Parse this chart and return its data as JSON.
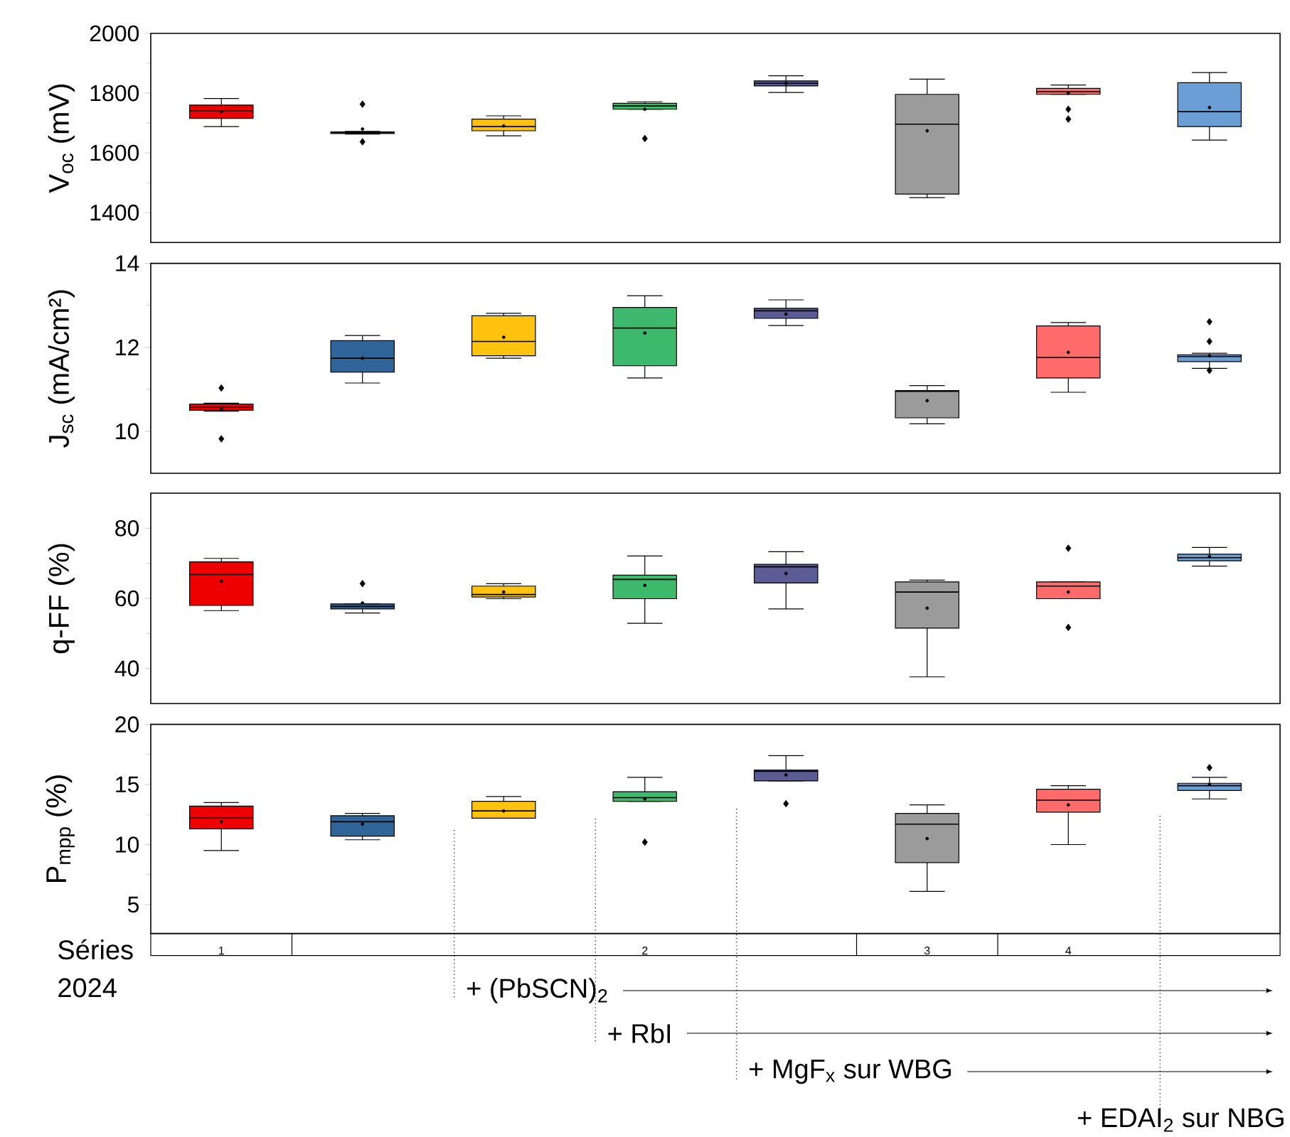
{
  "chart_data": [
    {
      "type": "box",
      "ylabel": "V$_{oc}$ (mV)",
      "categories": [
        "1",
        null,
        null,
        "2",
        null,
        "3",
        "4",
        null
      ],
      "ylim": [
        1300,
        2000
      ],
      "yticks": [
        1400,
        1600,
        1800,
        2000
      ],
      "tick_labels": "y",
      "marker": "diamond",
      "colors": [
        "#ee0000",
        "#2f6599",
        "#ffc20e",
        "#3cb96a",
        "#5b5b95",
        "#9b9b9b",
        "#ff6b6b",
        "#6a9ed4"
      ],
      "boxes": [
        {
          "low": 1688,
          "q1": 1715,
          "median": 1741,
          "q3": 1760,
          "high": 1782,
          "mean": 1738
        },
        {
          "low": 1663,
          "q1": 1665,
          "median": 1668,
          "q3": 1670,
          "high": 1672,
          "mean": 1680,
          "outliers": [
            1763,
            1637
          ]
        },
        {
          "low": 1657,
          "q1": 1674,
          "median": 1688,
          "q3": 1713,
          "high": 1724,
          "mean": 1690
        },
        {
          "low": 1746,
          "q1": 1746,
          "median": 1757,
          "q3": 1766,
          "high": 1771,
          "mean": 1746,
          "outliers": [
            1648
          ]
        },
        {
          "low": 1802,
          "q1": 1824,
          "median": 1833,
          "q3": 1841,
          "high": 1858,
          "mean": 1833
        },
        {
          "low": 1450,
          "q1": 1462,
          "median": 1696,
          "q3": 1796,
          "high": 1847,
          "mean": 1674
        },
        {
          "low": 1796,
          "q1": 1796,
          "median": 1805,
          "q3": 1816,
          "high": 1827,
          "mean": 1800,
          "outliers": [
            1746,
            1713
          ]
        },
        {
          "low": 1643,
          "q1": 1688,
          "median": 1738,
          "q3": 1835,
          "high": 1869,
          "mean": 1752
        }
      ]
    },
    {
      "type": "box",
      "ylabel": "J$_{sc}$ (mA/cm²)",
      "categories": [
        "1",
        null,
        null,
        "2",
        null,
        "3",
        "4",
        null
      ],
      "ylim": [
        9,
        14
      ],
      "yticks": [
        10,
        12,
        14
      ],
      "tick_labels": "y",
      "marker": "diamond",
      "colors": [
        "#ee0000",
        "#2f6599",
        "#ffc20e",
        "#3cb96a",
        "#5b5b95",
        "#9b9b9b",
        "#ff6b6b",
        "#6a9ed4"
      ],
      "boxes": [
        {
          "low": 10.48,
          "q1": 10.5,
          "median": 10.57,
          "q3": 10.65,
          "high": 10.67,
          "mean": 10.53,
          "outliers": [
            11.03,
            9.82
          ]
        },
        {
          "low": 11.15,
          "q1": 11.41,
          "median": 11.74,
          "q3": 12.16,
          "high": 12.28,
          "mean": 11.74
        },
        {
          "low": 11.74,
          "q1": 11.8,
          "median": 12.14,
          "q3": 12.75,
          "high": 12.81,
          "mean": 12.24
        },
        {
          "low": 11.27,
          "q1": 11.56,
          "median": 12.46,
          "q3": 12.95,
          "high": 13.23,
          "mean": 12.34
        },
        {
          "low": 12.52,
          "q1": 12.69,
          "median": 12.87,
          "q3": 12.93,
          "high": 13.13,
          "mean": 12.79
        },
        {
          "low": 10.18,
          "q1": 10.32,
          "median": 10.95,
          "q3": 10.97,
          "high": 11.09,
          "mean": 10.73
        },
        {
          "low": 10.93,
          "q1": 11.27,
          "median": 11.76,
          "q3": 12.51,
          "high": 12.59,
          "mean": 11.88
        },
        {
          "low": 11.5,
          "q1": 11.66,
          "median": 11.78,
          "q3": 11.82,
          "high": 11.86,
          "mean": 11.8,
          "outliers": [
            12.61,
            12.14,
            11.45
          ]
        }
      ]
    },
    {
      "type": "box",
      "ylabel": "q-FF (%)",
      "categories": [
        "1",
        null,
        null,
        "2",
        null,
        "3",
        "4",
        null
      ],
      "ylim": [
        30,
        90
      ],
      "yticks": [
        40,
        60,
        80
      ],
      "tick_labels": "y",
      "marker": "diamond",
      "colors": [
        "#ee0000",
        "#2f6599",
        "#ffc20e",
        "#3cb96a",
        "#5b5b95",
        "#9b9b9b",
        "#ff6b6b",
        "#6a9ed4"
      ],
      "boxes": [
        {
          "low": 56.5,
          "q1": 58.0,
          "median": 66.8,
          "q3": 70.4,
          "high": 71.4,
          "mean": 64.9
        },
        {
          "low": 55.8,
          "q1": 57.0,
          "median": 57.7,
          "q3": 58.4,
          "high": 58.4,
          "mean": 58.7,
          "outliers": [
            64.2
          ]
        },
        {
          "low": 59.9,
          "q1": 60.4,
          "median": 61.1,
          "q3": 63.5,
          "high": 64.2,
          "mean": 61.8
        },
        {
          "low": 52.9,
          "q1": 59.9,
          "median": 65.4,
          "q3": 66.6,
          "high": 72.1,
          "mean": 63.7
        },
        {
          "low": 57.0,
          "q1": 64.4,
          "median": 69.0,
          "q3": 69.7,
          "high": 73.3,
          "mean": 67.1
        },
        {
          "low": 37.6,
          "q1": 51.5,
          "median": 61.8,
          "q3": 64.7,
          "high": 65.2,
          "mean": 57.2
        },
        {
          "low": 59.9,
          "q1": 59.9,
          "median": 63.5,
          "q3": 64.7,
          "high": 64.7,
          "mean": 61.8,
          "outliers": [
            74.3,
            51.7
          ]
        },
        {
          "low": 69.2,
          "q1": 70.7,
          "median": 71.6,
          "q3": 72.6,
          "high": 74.5,
          "mean": 71.9
        }
      ]
    },
    {
      "type": "box",
      "ylabel": "P$_{mpp}$ (%)",
      "categories": [
        "1",
        null,
        null,
        "2",
        null,
        "3",
        "4",
        null
      ],
      "ylim": [
        2.6,
        20
      ],
      "yticks": [
        5,
        10,
        15,
        20
      ],
      "marker": "diamond",
      "colors": [
        "#ee0000",
        "#2f6599",
        "#ffc20e",
        "#3cb96a",
        "#5b5b95",
        "#9b9b9b",
        "#ff6b6b",
        "#6a9ed4"
      ],
      "boxes": [
        {
          "low": 9.5,
          "q1": 11.3,
          "median": 12.2,
          "q3": 13.2,
          "high": 13.5,
          "mean": 11.9
        },
        {
          "low": 10.4,
          "q1": 10.7,
          "median": 11.9,
          "q3": 12.4,
          "high": 12.6,
          "mean": 11.7
        },
        {
          "low": 12.2,
          "q1": 12.2,
          "median": 12.8,
          "q3": 13.6,
          "high": 14.0,
          "mean": 12.8
        },
        {
          "low": 13.6,
          "q1": 13.6,
          "median": 13.9,
          "q3": 14.4,
          "high": 15.6,
          "mean": 13.8,
          "outliers": [
            10.2
          ]
        },
        {
          "low": 15.3,
          "q1": 15.3,
          "median": 16.1,
          "q3": 16.2,
          "high": 17.4,
          "mean": 15.8,
          "outliers": [
            13.4
          ]
        },
        {
          "low": 6.1,
          "q1": 8.5,
          "median": 11.7,
          "q3": 12.6,
          "high": 13.3,
          "mean": 10.5
        },
        {
          "low": 10.0,
          "q1": 12.7,
          "median": 13.7,
          "q3": 14.6,
          "high": 14.9,
          "mean": 13.3
        },
        {
          "low": 13.8,
          "q1": 14.5,
          "median": 14.9,
          "q3": 15.1,
          "high": 15.6,
          "mean": 15.0,
          "outliers": [
            16.4
          ]
        }
      ],
      "annotations": [
        "Séries",
        "2024",
        "+ (PbSCN)$_{2}$",
        "+ RbI",
        "+ MgF$_{x}$ sur WBG",
        "+ EDAI$_{2}$ sur NBG"
      ]
    }
  ]
}
